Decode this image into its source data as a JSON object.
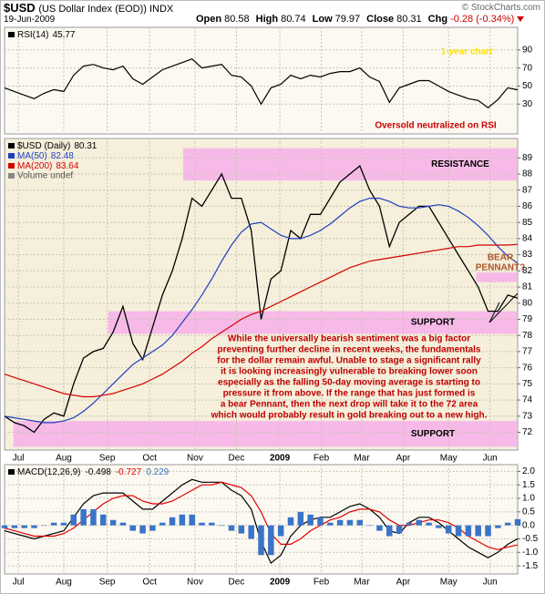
{
  "header": {
    "symbol": "$USD",
    "description": "(US Dollar Index (EOD)) INDX",
    "source": "© StockCharts.com",
    "date": "19-Jun-2009",
    "quote": [
      {
        "label": "Open",
        "value": 80.58
      },
      {
        "label": "High",
        "value": 80.74
      },
      {
        "label": "Low",
        "value": 79.97
      },
      {
        "label": "Close",
        "value": 80.31
      }
    ],
    "change": {
      "label": "Chg",
      "value": -0.28
    },
    "change_pct": {
      "value": -0.34,
      "label": "(-0.34%)"
    }
  },
  "chart_data": [
    {
      "type": "line",
      "series": [
        {
          "name": "RSI(14)",
          "color": "#000000",
          "values": [
            48,
            44,
            40,
            36,
            42,
            46,
            44,
            62,
            72,
            74,
            70,
            68,
            72,
            58,
            52,
            60,
            68,
            72,
            76,
            80,
            70,
            72,
            74,
            62,
            60,
            50,
            30,
            48,
            52,
            62,
            58,
            62,
            60,
            64,
            66,
            66,
            70,
            60,
            55,
            32,
            48,
            52,
            56,
            56,
            50,
            44,
            40,
            36,
            34,
            26,
            35,
            48,
            45.77
          ]
        }
      ],
      "ylim": [
        -3,
        115
      ],
      "yticks": [
        30,
        50,
        70,
        90
      ],
      "grid": true,
      "annotations": [
        {
          "text": "1-year chart",
          "color": "#ffe000"
        },
        {
          "text": "Oversold neutralized on RSI",
          "color": "#cc0000"
        }
      ]
    },
    {
      "type": "line",
      "series": [
        {
          "name": "$USD (Daily)",
          "color": "#000000",
          "values": [
            73.0,
            72.6,
            72.4,
            72.0,
            72.8,
            73.2,
            73.0,
            75.0,
            76.6,
            77.0,
            77.2,
            78.2,
            79.8,
            77.5,
            76.5,
            78.5,
            80.5,
            82.0,
            84.0,
            86.5,
            86.0,
            87.0,
            88.0,
            86.5,
            86.5,
            84.5,
            79.0,
            81.5,
            82.0,
            84.5,
            84.0,
            85.5,
            85.5,
            86.5,
            87.5,
            88.0,
            88.5,
            87.0,
            86.0,
            83.5,
            85.0,
            85.5,
            86.0,
            86.0,
            85.0,
            84.0,
            83.0,
            82.0,
            81.0,
            79.5,
            79.5,
            80.5,
            80.31
          ]
        },
        {
          "name": "MA(50)",
          "color": "#1f3fbf",
          "values": [
            73.0,
            72.9,
            72.8,
            72.7,
            72.6,
            72.6,
            72.7,
            72.9,
            73.3,
            73.8,
            74.4,
            75.0,
            75.6,
            76.2,
            76.6,
            77.0,
            77.4,
            78.0,
            78.8,
            79.6,
            80.5,
            81.5,
            82.6,
            83.6,
            84.4,
            84.9,
            85.0,
            84.6,
            84.2,
            84.0,
            84.0,
            84.2,
            84.5,
            84.9,
            85.4,
            85.9,
            86.3,
            86.5,
            86.5,
            86.3,
            86.0,
            85.9,
            85.9,
            86.0,
            86.1,
            86.0,
            85.7,
            85.3,
            84.8,
            84.2,
            83.5,
            82.9,
            82.48
          ]
        },
        {
          "name": "MA(200)",
          "color": "#d40000",
          "values": [
            75.6,
            75.4,
            75.2,
            75.0,
            74.8,
            74.6,
            74.4,
            74.3,
            74.2,
            74.2,
            74.3,
            74.4,
            74.6,
            74.8,
            75.0,
            75.3,
            75.6,
            76.0,
            76.4,
            76.9,
            77.3,
            77.8,
            78.2,
            78.6,
            79.0,
            79.3,
            79.5,
            79.8,
            80.1,
            80.4,
            80.7,
            81.0,
            81.3,
            81.6,
            81.9,
            82.2,
            82.4,
            82.6,
            82.7,
            82.8,
            82.9,
            83.0,
            83.1,
            83.2,
            83.3,
            83.4,
            83.5,
            83.5,
            83.6,
            83.6,
            83.6,
            83.6,
            83.64
          ]
        }
      ],
      "volume_label": "Volume undef",
      "ylim": [
        70.9,
        90.2
      ],
      "yticks": [
        72,
        73,
        74,
        75,
        76,
        77,
        78,
        79,
        80,
        81,
        82,
        83,
        84,
        85,
        86,
        87,
        88,
        89
      ],
      "xticks": [
        {
          "value": 1.4,
          "label": "Jul"
        },
        {
          "value": 6.0,
          "label": "Aug"
        },
        {
          "value": 10.4,
          "label": "Sep"
        },
        {
          "value": 14.7,
          "label": "Oct"
        },
        {
          "value": 19.3,
          "label": "Nov"
        },
        {
          "value": 23.5,
          "label": "Dec"
        },
        {
          "value": 27.9,
          "label": "2009"
        },
        {
          "value": 32.1,
          "label": "Feb"
        },
        {
          "value": 36.2,
          "label": "Mar"
        },
        {
          "value": 40.4,
          "label": "Apr"
        },
        {
          "value": 45.0,
          "label": "May"
        },
        {
          "value": 49.2,
          "label": "Jun"
        }
      ],
      "grid": true,
      "bands": [
        {
          "label": "RESISTANCE",
          "range": [
            87.6,
            89.6
          ],
          "x_range": [
            18.1,
            52
          ]
        },
        {
          "label": "SUPPORT",
          "range": [
            78.1,
            79.5
          ],
          "x_range": [
            10.5,
            52
          ]
        },
        {
          "label": "SUPPORT",
          "range": [
            71.1,
            72.7
          ],
          "x_range": [
            0.9,
            52
          ]
        },
        {
          "range": [
            81.3,
            81.9
          ],
          "x_range": [
            47.8,
            52
          ]
        }
      ],
      "annotations": [
        {
          "lines": [
            "While the universally bearish sentiment was a big factor",
            "preventing further decline in recent weeks, the fundamentals",
            "for the dollar remain awful. Unable to stage a significant rally",
            "it is looking increasingly vulnerable to breaking lower soon",
            "especially as the falling 50-day moving average is starting to",
            "pressure it from above. If the range that has just formed is",
            "a bear Pennant, then the next drop will take it to the 72 area",
            "which would probably result in gold breaking out to a new high."
          ],
          "color": "#c00000"
        },
        {
          "lines": [
            "BEAR",
            "PENNANT?"
          ],
          "color": "#b0552a"
        }
      ]
    },
    {
      "type": "line",
      "title": "MACD(12,26,9)",
      "series": [
        {
          "color": "#000000",
          "values": [
            -0.2,
            -0.3,
            -0.4,
            -0.5,
            -0.4,
            -0.3,
            -0.2,
            0.3,
            0.8,
            1.1,
            1.2,
            1.2,
            1.2,
            0.9,
            0.6,
            0.6,
            0.9,
            1.2,
            1.5,
            1.7,
            1.6,
            1.6,
            1.6,
            1.3,
            1.1,
            0.6,
            -0.6,
            -1.4,
            -1.1,
            -0.4,
            0.0,
            0.2,
            0.3,
            0.3,
            0.5,
            0.7,
            0.8,
            0.6,
            0.3,
            -0.2,
            -0.3,
            0.1,
            0.3,
            0.3,
            0.1,
            -0.2,
            -0.5,
            -0.8,
            -1.0,
            -1.2,
            -1.0,
            -0.7,
            -0.498
          ]
        },
        {
          "color": "#e00000",
          "values": [
            -0.1,
            -0.2,
            -0.3,
            -0.4,
            -0.4,
            -0.4,
            -0.3,
            -0.1,
            0.2,
            0.5,
            0.8,
            1.0,
            1.1,
            1.1,
            0.9,
            0.8,
            0.8,
            0.9,
            1.1,
            1.3,
            1.5,
            1.5,
            1.6,
            1.5,
            1.4,
            1.1,
            0.5,
            -0.3,
            -0.7,
            -0.7,
            -0.5,
            -0.2,
            0.0,
            0.2,
            0.3,
            0.5,
            0.6,
            0.6,
            0.5,
            0.2,
            0.0,
            0.0,
            0.1,
            0.2,
            0.2,
            0.1,
            -0.1,
            -0.4,
            -0.6,
            -0.8,
            -0.9,
            -0.8,
            -0.727
          ]
        },
        {
          "color": "#3a74c8",
          "style": "histogram",
          "values": [
            -0.1,
            -0.1,
            -0.1,
            -0.1,
            0,
            0.1,
            0.1,
            0.4,
            0.6,
            0.6,
            0.4,
            0.2,
            0.1,
            -0.2,
            -0.3,
            -0.2,
            0.1,
            0.3,
            0.4,
            0.4,
            0.1,
            0.1,
            0,
            -0.2,
            -0.3,
            -0.5,
            -1.1,
            -1.1,
            -0.4,
            0.3,
            0.5,
            0.4,
            0.3,
            0.1,
            0.2,
            0.2,
            0.2,
            0,
            -0.2,
            -0.4,
            -0.3,
            0.1,
            0.2,
            0.1,
            -0.1,
            -0.3,
            -0.4,
            -0.4,
            -0.4,
            -0.4,
            -0.1,
            0.1,
            0.229
          ]
        }
      ],
      "ylim": [
        -1.8,
        2.25
      ],
      "yticks": [
        {
          "value": 2,
          "label": "2.0"
        },
        {
          "value": 1.5,
          "label": "1.5"
        },
        {
          "value": 1,
          "label": "1.0"
        },
        {
          "value": 0.5,
          "label": "0.5"
        },
        {
          "value": 0,
          "label": "0.0"
        },
        {
          "value": -0.5,
          "label": "-0.5"
        },
        {
          "value": -1,
          "label": "-1.0"
        },
        {
          "value": -1.5,
          "label": "-1.5"
        }
      ],
      "xticks": [
        {
          "value": 1.4,
          "label": "Jul"
        },
        {
          "value": 6.0,
          "label": "Aug"
        },
        {
          "value": 10.4,
          "label": "Sep"
        },
        {
          "value": 14.7,
          "label": "Oct"
        },
        {
          "value": 19.3,
          "label": "Nov"
        },
        {
          "value": 23.5,
          "label": "Dec"
        },
        {
          "value": 27.9,
          "label": "2009"
        },
        {
          "value": 32.1,
          "label": "Feb"
        },
        {
          "value": 36.2,
          "label": "Mar"
        },
        {
          "value": 40.4,
          "label": "Apr"
        },
        {
          "value": 45.0,
          "label": "May"
        },
        {
          "value": 49.2,
          "label": "Jun"
        }
      ],
      "grid": true
    }
  ]
}
